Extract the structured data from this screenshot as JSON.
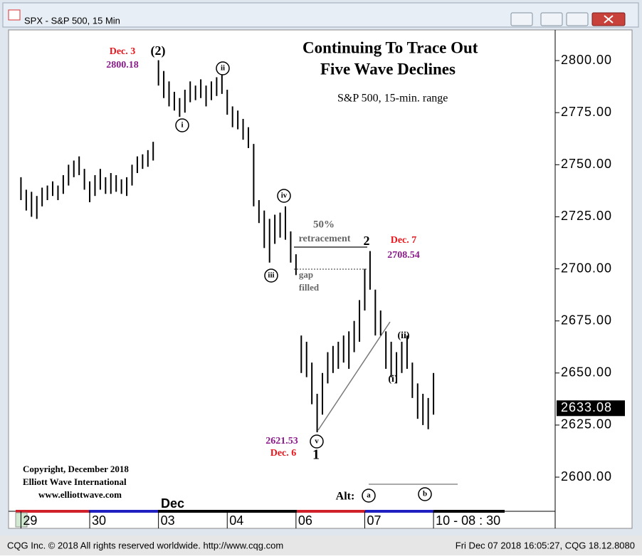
{
  "window_title": "SPX - S&P 500, 15 Min",
  "chart_data": {
    "type": "range-bar",
    "title": [
      "Continuing To Trace Out",
      "Five Wave Declines"
    ],
    "subtitle": "S&P 500, 15-min. range",
    "x": [
      0,
      1,
      2,
      3,
      4,
      5,
      6,
      7,
      8,
      9,
      10,
      11,
      12,
      13,
      14,
      15,
      16,
      17,
      18,
      19,
      20,
      21,
      22,
      23,
      24,
      25,
      26,
      27,
      28,
      29,
      30,
      31,
      32,
      33,
      34,
      35,
      36,
      37,
      38,
      39,
      40,
      41,
      42,
      43,
      44,
      45,
      46,
      47,
      48,
      49,
      50,
      51,
      52,
      53,
      54,
      55,
      56,
      57,
      58,
      59,
      60,
      61,
      62,
      63,
      64,
      65,
      66,
      67,
      68,
      69,
      70,
      71,
      72,
      73,
      74,
      75,
      76,
      77,
      78
    ],
    "high": [
      2744,
      2738,
      2737,
      2735,
      2739,
      2740,
      2742,
      2740,
      2745,
      2750,
      2752,
      2754,
      2748,
      2742,
      2745,
      2748,
      2744,
      2746,
      2745,
      2743,
      2744,
      2750,
      2754,
      2755,
      2757,
      2761,
      2800.18,
      2795,
      2790,
      2785,
      2782,
      2786,
      2790,
      2788,
      2791,
      2788,
      2790,
      2792,
      2793,
      2786,
      2778,
      2776,
      2772,
      2768,
      2760,
      2733,
      2728,
      2724,
      2726,
      2727,
      2730,
      2718,
      2707,
      2668,
      2665,
      2655,
      2640,
      2650,
      2660,
      2663,
      2665,
      2668,
      2670,
      2675,
      2685,
      2700,
      2708.54,
      2690,
      2680,
      2670,
      2665,
      2660,
      2665,
      2668,
      2655,
      2645,
      2640,
      2638,
      2650
    ],
    "low": [
      2733,
      2728,
      2725,
      2724,
      2730,
      2733,
      2735,
      2733,
      2736,
      2740,
      2744,
      2745,
      2738,
      2732,
      2735,
      2738,
      2736,
      2736,
      2737,
      2736,
      2735,
      2740,
      2746,
      2748,
      2749,
      2752,
      2788,
      2782,
      2778,
      2776,
      2773,
      2775,
      2780,
      2781,
      2782,
      2778,
      2781,
      2783,
      2784,
      2774,
      2768,
      2767,
      2762,
      2758,
      2730,
      2722,
      2710,
      2703,
      2712,
      2715,
      2714,
      2703,
      2697,
      2650,
      2648,
      2635,
      2621.53,
      2630,
      2645,
      2650,
      2652,
      2655,
      2652,
      2660,
      2665,
      2680,
      2690,
      2668,
      2668,
      2652,
      2648,
      2645,
      2650,
      2652,
      2638,
      2628,
      2625,
      2623,
      2630
    ],
    "color": "#000000",
    "xlim": [
      -1,
      101
    ],
    "xticks": [
      {
        "value": 0,
        "label": "29"
      },
      {
        "value": 13,
        "label": "30"
      },
      {
        "value": 26,
        "label": "03"
      },
      {
        "value": 39,
        "label": "04"
      },
      {
        "value": 52,
        "label": "06"
      },
      {
        "value": 65,
        "label": "07"
      },
      {
        "value": 78,
        "label": "10 - 08 : 30"
      }
    ],
    "month_label": "Dec",
    "ylim": [
      2583.6,
      2813.7
    ],
    "yticks": [
      {
        "value": 2600,
        "label": "2600.00"
      },
      {
        "value": 2625,
        "label": "2625.00"
      },
      {
        "value": 2650,
        "label": "2650.00"
      },
      {
        "value": 2675,
        "label": "2675.00"
      },
      {
        "value": 2700,
        "label": "2700.00"
      },
      {
        "value": 2725,
        "label": "2725.00"
      },
      {
        "value": 2750,
        "label": "2750.00"
      },
      {
        "value": 2775,
        "label": "2775.00"
      },
      {
        "value": 2800,
        "label": "2800.00"
      }
    ],
    "last": {
      "value": 2633.08,
      "label": "2633.08"
    },
    "annotations": [
      {
        "text": "Dec. 3",
        "color": "#e8161c"
      },
      {
        "text": "2800.18",
        "color": "#8b1a8b"
      },
      {
        "text": "(2)",
        "color": "#000000"
      },
      {
        "text": "ii",
        "color": "#000000",
        "circled": true
      },
      {
        "text": "i",
        "color": "#000000",
        "circled": true
      },
      {
        "text": "iii",
        "color": "#000000",
        "circled": true
      },
      {
        "text": "iv",
        "color": "#000000",
        "circled": true
      },
      {
        "text": "v",
        "color": "#000000",
        "circled": true
      },
      {
        "text": "1",
        "color": "#000000"
      },
      {
        "text": "2",
        "color": "#000000"
      },
      {
        "text": "Dec. 7",
        "color": "#e8161c"
      },
      {
        "text": "2708.54",
        "color": "#8b1a8b"
      },
      {
        "text": "50%",
        "color": "#666666"
      },
      {
        "text": "retracement",
        "color": "#666666"
      },
      {
        "text": "gap",
        "color": "#666666"
      },
      {
        "text": "filled",
        "color": "#666666"
      },
      {
        "text": "2621.53",
        "color": "#8b1a8b"
      },
      {
        "text": "Dec. 6",
        "color": "#e8161c"
      },
      {
        "text": "(ii)",
        "color": "#000000"
      },
      {
        "text": "(i)",
        "color": "#000000"
      },
      {
        "text": "Alt:",
        "color": "#000000"
      },
      {
        "text": "a",
        "color": "#000000",
        "circled": true
      },
      {
        "text": "b",
        "color": "#000000",
        "circled": true
      }
    ],
    "copyright": [
      "Copyright, December 2018",
      "Elliott Wave International",
      "www.elliottwave.com"
    ]
  },
  "footer": {
    "left": "CQG Inc. © 2018 All rights reserved worldwide. http://www.cqg.com",
    "right": "Fri Dec 07 2018 16:05:27, CQG 18.12.8080"
  }
}
